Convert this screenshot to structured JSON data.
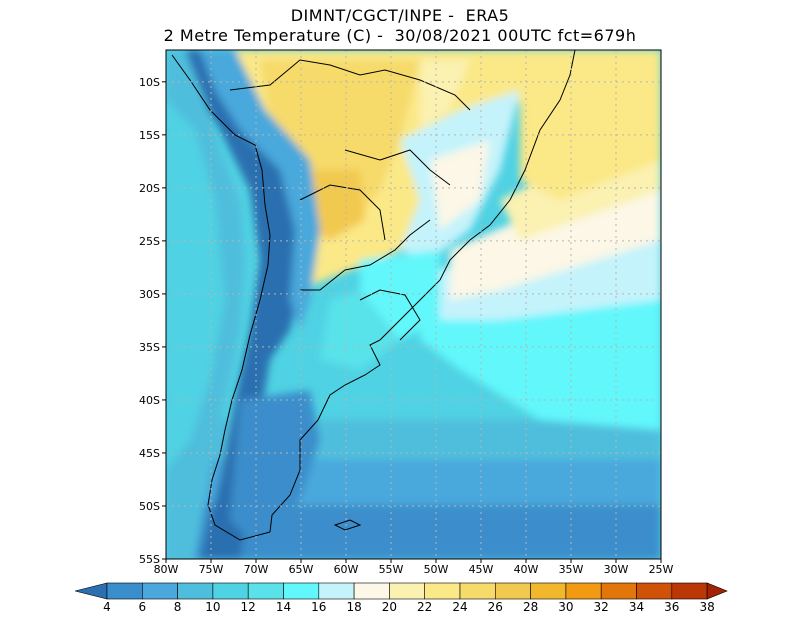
{
  "header": {
    "line1": "DIMNT/CGCT/INPE -  ERA5",
    "line2": "2 Metre Temperature (C) -  30/08/2021 00UTC fct=679h"
  },
  "map": {
    "lon_range": [
      -80,
      -25
    ],
    "lat_range": [
      -55,
      -7
    ],
    "lat_ticks": [
      "10S",
      "15S",
      "20S",
      "25S",
      "30S",
      "35S",
      "40S",
      "45S",
      "50S",
      "55S"
    ],
    "lon_ticks": [
      "80W",
      "75W",
      "70W",
      "65W",
      "60W",
      "55W",
      "50W",
      "45W",
      "40W",
      "35W",
      "30W",
      "25W"
    ]
  },
  "colorbar": {
    "labels": [
      "4",
      "6",
      "8",
      "10",
      "12",
      "14",
      "16",
      "18",
      "20",
      "22",
      "24",
      "26",
      "28",
      "30",
      "32",
      "34",
      "36",
      "38"
    ],
    "colors": [
      "#2b6fb0",
      "#3a8ecb",
      "#4aa8dc",
      "#4fbedd",
      "#4fd2e3",
      "#59e2ea",
      "#62f7fb",
      "#c5f3fb",
      "#fcf7e6",
      "#fbf1b0",
      "#fbe887",
      "#f6da6a",
      "#f2c94f",
      "#f1b82e",
      "#f19a12",
      "#e2760a",
      "#cf5208",
      "#bb3706",
      "#a62204"
    ]
  }
}
